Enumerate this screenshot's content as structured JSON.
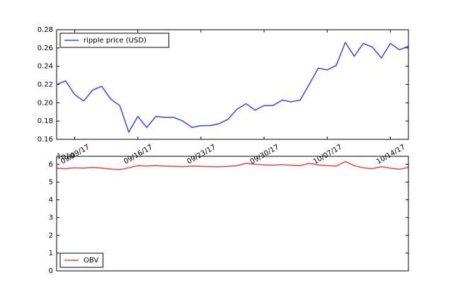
{
  "chart_data": [
    {
      "type": "line",
      "x": [
        "2017-09-07",
        "2017-09-08",
        "2017-09-09",
        "2017-09-10",
        "2017-09-11",
        "2017-09-12",
        "2017-09-13",
        "2017-09-14",
        "2017-09-15",
        "2017-09-16",
        "2017-09-17",
        "2017-09-18",
        "2017-09-19",
        "2017-09-20",
        "2017-09-21",
        "2017-09-22",
        "2017-09-23",
        "2017-09-24",
        "2017-09-25",
        "2017-09-26",
        "2017-09-27",
        "2017-09-28",
        "2017-09-29",
        "2017-09-30",
        "2017-10-01",
        "2017-10-02",
        "2017-10-03",
        "2017-10-04",
        "2017-10-05",
        "2017-10-06",
        "2017-10-07",
        "2017-10-08",
        "2017-10-09",
        "2017-10-10",
        "2017-10-11",
        "2017-10-12",
        "2017-10-13",
        "2017-10-14",
        "2017-10-15",
        "2017-10-16"
      ],
      "series": [
        {
          "name": "ripple price (USD)",
          "color": "#4040f0",
          "values": [
            0.22,
            0.224,
            0.209,
            0.202,
            0.214,
            0.218,
            0.204,
            0.197,
            0.168,
            0.185,
            0.173,
            0.185,
            0.184,
            0.184,
            0.18,
            0.173,
            0.175,
            0.175,
            0.177,
            0.182,
            0.193,
            0.199,
            0.192,
            0.197,
            0.197,
            0.203,
            0.201,
            0.203,
            0.22,
            0.238,
            0.236,
            0.241,
            0.266,
            0.251,
            0.265,
            0.261,
            0.249,
            0.265,
            0.258,
            0.262
          ]
        }
      ],
      "xlim": [
        "2017-09-07",
        "2017-10-16"
      ],
      "xticks": [
        {
          "value": "2017-09-09",
          "label": "09/09/17"
        },
        {
          "value": "2017-09-16",
          "label": "09/16/17"
        },
        {
          "value": "2017-09-23",
          "label": "09/23/17"
        },
        {
          "value": "2017-09-30",
          "label": "09/30/17"
        },
        {
          "value": "2017-10-07",
          "label": "10/07/17"
        },
        {
          "value": "2017-10-14",
          "label": "10/14/17"
        }
      ],
      "ylim": [
        0.16,
        0.28
      ],
      "yticks": [
        0.16,
        0.18,
        {
          "value": 0.2,
          "label": "0.20"
        },
        0.22,
        0.24,
        0.26,
        0.28
      ],
      "legend": "upper left"
    },
    {
      "type": "line",
      "x": [
        "2017-09-07",
        "2017-09-08",
        "2017-09-09",
        "2017-09-10",
        "2017-09-11",
        "2017-09-12",
        "2017-09-13",
        "2017-09-14",
        "2017-09-15",
        "2017-09-16",
        "2017-09-17",
        "2017-09-18",
        "2017-09-19",
        "2017-09-20",
        "2017-09-21",
        "2017-09-22",
        "2017-09-23",
        "2017-09-24",
        "2017-09-25",
        "2017-09-26",
        "2017-09-27",
        "2017-09-28",
        "2017-09-29",
        "2017-09-30",
        "2017-10-01",
        "2017-10-02",
        "2017-10-03",
        "2017-10-04",
        "2017-10-05",
        "2017-10-06",
        "2017-10-07",
        "2017-10-08",
        "2017-10-09",
        "2017-10-10",
        "2017-10-11",
        "2017-10-12",
        "2017-10-13",
        "2017-10-14",
        "2017-10-15",
        "2017-10-16"
      ],
      "series": [
        {
          "name": "OBV",
          "color": "#f04040",
          "values": [
            5.78,
            5.75,
            5.8,
            5.78,
            5.83,
            5.78,
            5.73,
            5.7,
            5.8,
            5.93,
            5.9,
            5.93,
            5.9,
            5.88,
            5.87,
            5.9,
            5.88,
            5.87,
            5.86,
            5.88,
            5.93,
            6.05,
            6.0,
            5.97,
            5.95,
            5.98,
            5.95,
            5.93,
            6.05,
            5.97,
            5.92,
            5.9,
            6.15,
            5.92,
            5.8,
            5.75,
            5.87,
            5.78,
            5.72,
            5.82
          ]
        }
      ],
      "xlim": [
        "2017-09-07",
        "2017-10-16"
      ],
      "ylim": [
        0,
        6.45
      ],
      "yticks": [
        0,
        1,
        2,
        3,
        4,
        5,
        6
      ],
      "offset_text": "1e10",
      "legend": "lower left"
    }
  ]
}
